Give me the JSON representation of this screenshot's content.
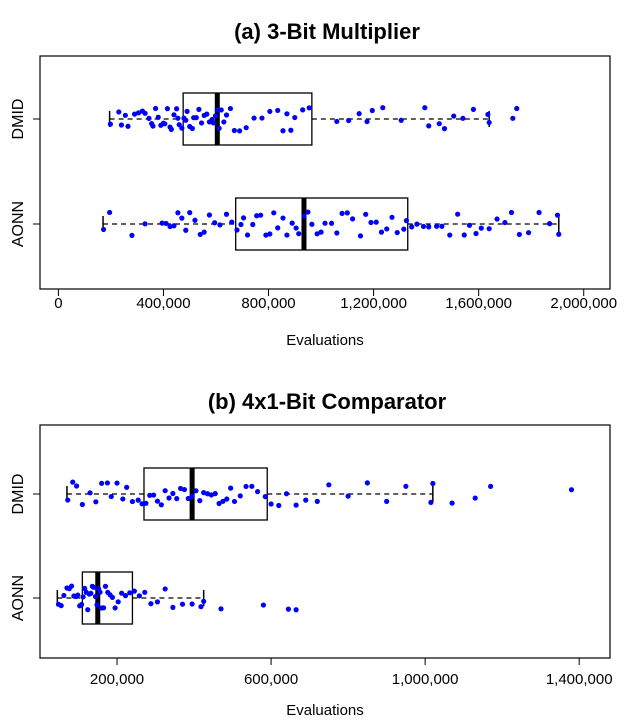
{
  "chart_data": [
    {
      "type": "boxplot",
      "title": "(a) 3-Bit Multiplier",
      "xlabel": "Evaluations",
      "xlim": [
        -70000,
        2100000
      ],
      "x_ticks": [
        {
          "value": 0,
          "label": "0"
        },
        {
          "value": 400000,
          "label": "400,000"
        },
        {
          "value": 800000,
          "label": "800,000"
        },
        {
          "value": 1200000,
          "label": "1,200,000"
        },
        {
          "value": 1600000,
          "label": "1,600,000"
        },
        {
          "value": 2000000,
          "label": "2,000,000"
        }
      ],
      "orientation": "horizontal",
      "grid": false,
      "point_color": "#0000ff",
      "series": [
        {
          "name": "DMID",
          "min": 195000,
          "q1": 475000,
          "median": 605000,
          "q3": 965000,
          "max": 1640000,
          "outliers": [
            1730000,
            1745000
          ],
          "points": [
            198000,
            230000,
            240000,
            255000,
            265000,
            290000,
            305000,
            320000,
            330000,
            345000,
            355000,
            360000,
            370000,
            380000,
            390000,
            400000,
            405000,
            415000,
            425000,
            430000,
            440000,
            450000,
            455000,
            460000,
            470000,
            478000,
            485000,
            490000,
            500000,
            510000,
            515000,
            525000,
            535000,
            545000,
            555000,
            565000,
            575000,
            585000,
            590000,
            598000,
            605000,
            612000,
            620000,
            630000,
            640000,
            655000,
            670000,
            690000,
            715000,
            745000,
            775000,
            805000,
            835000,
            855000,
            870000,
            885000,
            900000,
            930000,
            955000,
            1060000,
            1105000,
            1145000,
            1175000,
            1195000,
            1235000,
            1305000,
            1395000,
            1410000,
            1450000,
            1470000,
            1505000,
            1540000,
            1580000,
            1635000,
            1640000,
            1730000,
            1745000
          ]
        },
        {
          "name": "AONN",
          "min": 170000,
          "q1": 675000,
          "median": 935000,
          "q3": 1330000,
          "max": 1905000,
          "outliers": [],
          "points": [
            172000,
            195000,
            280000,
            330000,
            395000,
            410000,
            425000,
            440000,
            455000,
            470000,
            485000,
            500000,
            520000,
            540000,
            555000,
            575000,
            595000,
            615000,
            640000,
            660000,
            680000,
            695000,
            705000,
            720000,
            740000,
            755000,
            770000,
            790000,
            805000,
            820000,
            835000,
            855000,
            870000,
            890000,
            905000,
            915000,
            935000,
            950000,
            965000,
            985000,
            1000000,
            1015000,
            1040000,
            1060000,
            1080000,
            1100000,
            1120000,
            1150000,
            1170000,
            1190000,
            1210000,
            1230000,
            1250000,
            1270000,
            1290000,
            1315000,
            1325000,
            1345000,
            1365000,
            1390000,
            1410000,
            1440000,
            1460000,
            1490000,
            1520000,
            1545000,
            1565000,
            1590000,
            1610000,
            1640000,
            1670000,
            1700000,
            1725000,
            1755000,
            1790000,
            1830000,
            1870000,
            1900000,
            1905000
          ]
        }
      ]
    },
    {
      "type": "boxplot",
      "title": "(b) 4x1-Bit Comparator",
      "xlabel": "Evaluations",
      "xlim": [
        0,
        1480000
      ],
      "x_ticks": [
        {
          "value": 200000,
          "label": "200,000"
        },
        {
          "value": 600000,
          "label": "600,000"
        },
        {
          "value": 1000000,
          "label": "1,000,000"
        },
        {
          "value": 1400000,
          "label": "1,400,000"
        }
      ],
      "orientation": "horizontal",
      "grid": false,
      "point_color": "#0000ff",
      "series": [
        {
          "name": "DMID",
          "min": 70000,
          "q1": 270000,
          "median": 395000,
          "q3": 590000,
          "max": 1020000,
          "outliers": [
            1070000,
            1130000,
            1170000,
            1380000
          ],
          "points": [
            72000,
            85000,
            95000,
            110000,
            130000,
            145000,
            160000,
            175000,
            185000,
            200000,
            215000,
            225000,
            240000,
            255000,
            265000,
            275000,
            285000,
            295000,
            305000,
            315000,
            325000,
            335000,
            345000,
            355000,
            365000,
            375000,
            385000,
            395000,
            405000,
            415000,
            425000,
            435000,
            445000,
            455000,
            465000,
            475000,
            485000,
            495000,
            505000,
            520000,
            535000,
            550000,
            565000,
            585000,
            600000,
            620000,
            640000,
            665000,
            690000,
            720000,
            750000,
            800000,
            850000,
            900000,
            950000,
            1015000,
            1020000,
            1070000,
            1130000,
            1170000,
            1380000
          ]
        },
        {
          "name": "AONN",
          "min": 45000,
          "q1": 110000,
          "median": 150000,
          "q3": 240000,
          "max": 425000,
          "outliers": [
            470000,
            580000,
            645000,
            665000
          ],
          "points": [
            48000,
            55000,
            62000,
            70000,
            76000,
            82000,
            88000,
            93000,
            98000,
            103000,
            108000,
            112000,
            116000,
            120000,
            124000,
            128000,
            132000,
            136000,
            140000,
            144000,
            148000,
            152000,
            156000,
            160000,
            165000,
            170000,
            176000,
            182000,
            188000,
            195000,
            203000,
            212000,
            222000,
            233000,
            245000,
            258000,
            272000,
            288000,
            305000,
            325000,
            345000,
            370000,
            395000,
            418000,
            425000,
            470000,
            580000,
            645000,
            665000
          ]
        }
      ]
    }
  ]
}
